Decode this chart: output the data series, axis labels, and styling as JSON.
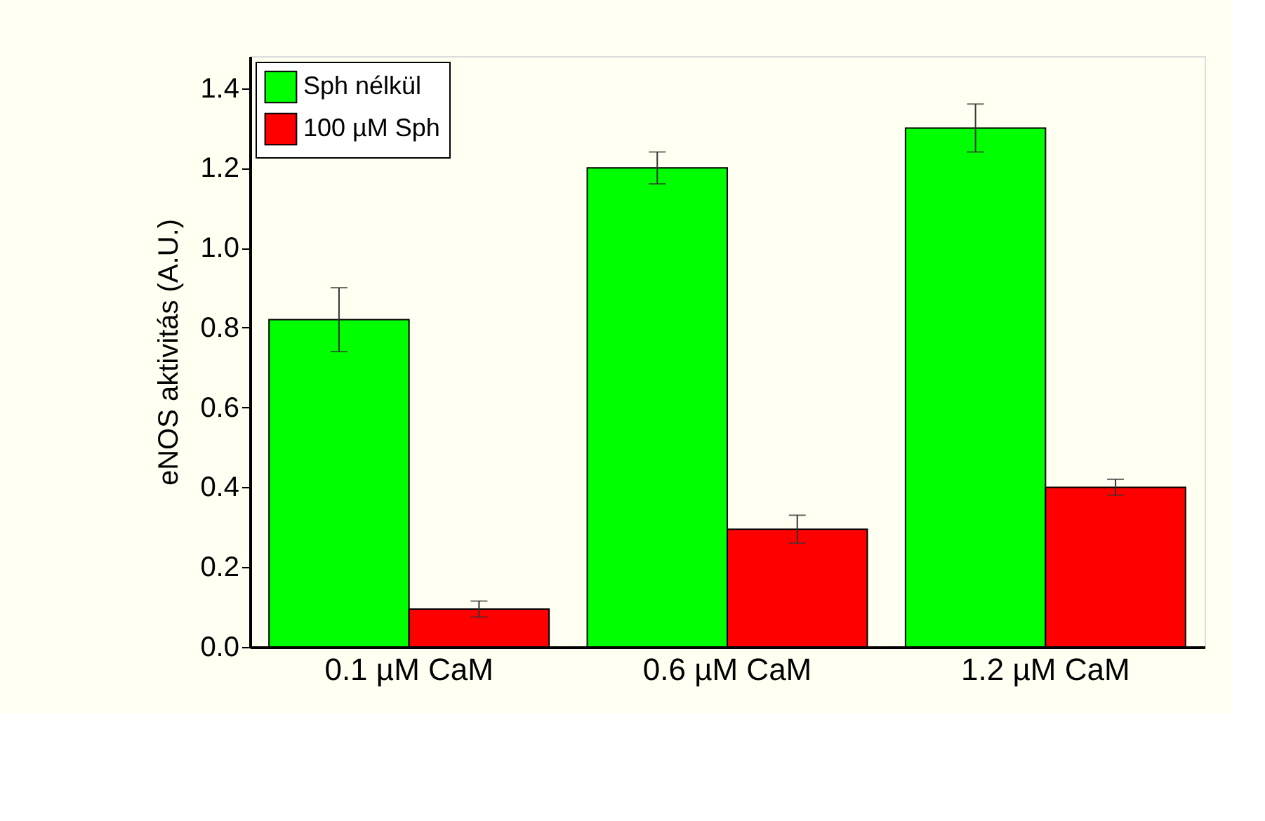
{
  "chart_data": {
    "type": "bar",
    "ylabel": "eNOS aktivitás (A.U.)",
    "categories": [
      "0.1 µM CaM",
      "0.6 µM CaM",
      "1.2 µM CaM"
    ],
    "series": [
      {
        "name": "Sph nélkül",
        "color": "#00ff00",
        "values": [
          0.82,
          1.2,
          1.3
        ],
        "errors": [
          0.08,
          0.04,
          0.06
        ]
      },
      {
        "name": "100 µM Sph",
        "color": "#ff0000",
        "values": [
          0.095,
          0.295,
          0.4
        ],
        "errors": [
          0.02,
          0.035,
          0.02
        ]
      }
    ],
    "ylim": [
      0,
      1.48
    ],
    "yticks": [
      {
        "value": 0,
        "label": "0.0"
      },
      0.2,
      0.4,
      0.6,
      0.8,
      {
        "value": 1,
        "label": "1.0"
      },
      1.2,
      1.4
    ],
    "legend": "top left",
    "grid": false
  }
}
